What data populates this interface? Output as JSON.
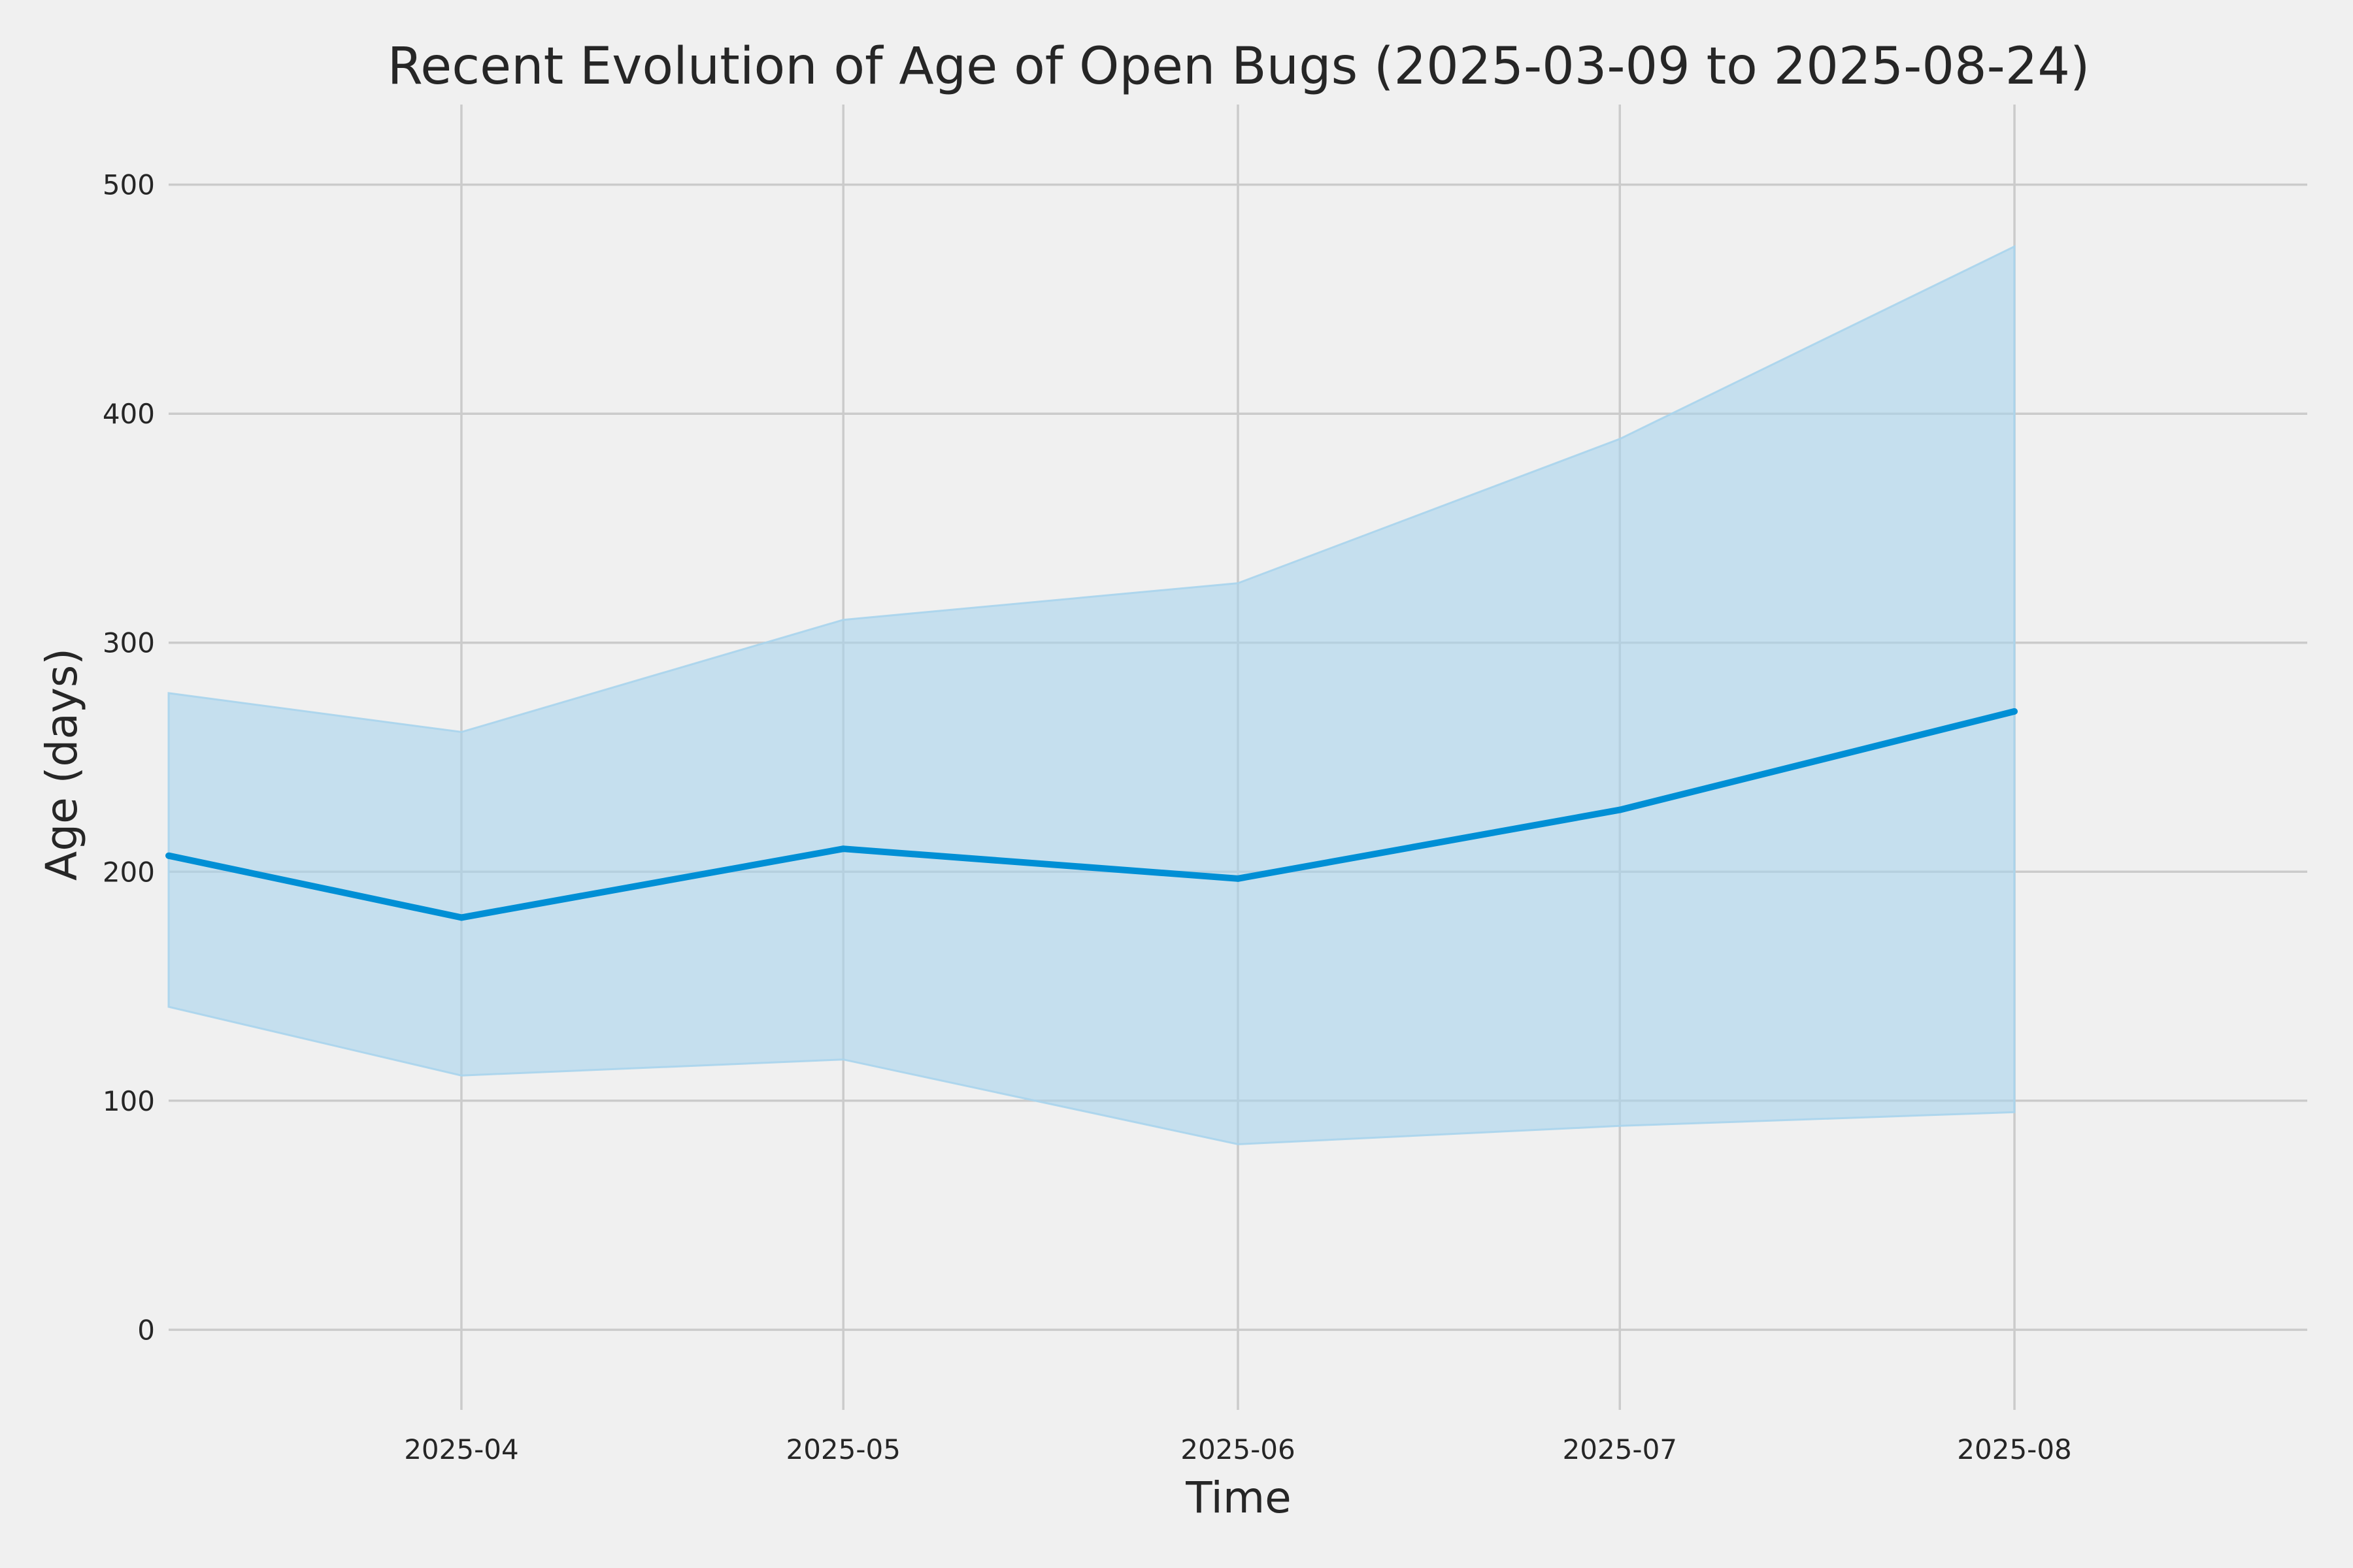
{
  "chart_data": {
    "type": "line",
    "title": "Recent Evolution of Age of Open Bugs (2025-03-09 to 2025-08-24)",
    "xlabel": "Time",
    "ylabel": "Age (days)",
    "x": [
      "2025-03-09",
      "2025-04-01",
      "2025-05-01",
      "2025-06-01",
      "2025-07-01",
      "2025-08-01"
    ],
    "xlim": [
      "2025-03-09",
      "2025-08-24"
    ],
    "ylim": [
      -35,
      535
    ],
    "x_ticks": [
      "2025-04-01",
      "2025-05-01",
      "2025-06-01",
      "2025-07-01",
      "2025-08-01"
    ],
    "x_tick_labels": [
      "2025-04",
      "2025-05",
      "2025-06",
      "2025-07",
      "2025-08"
    ],
    "y_ticks": [
      0,
      100,
      200,
      300,
      400,
      500
    ],
    "y_tick_labels": [
      "0",
      "100",
      "200",
      "300",
      "400",
      "500"
    ],
    "series": [
      {
        "values": [
          207,
          180,
          210,
          197,
          227,
          270
        ],
        "upper": [
          278,
          261,
          310,
          326,
          389,
          473
        ],
        "lower": [
          141,
          111,
          118,
          81,
          89,
          95
        ],
        "color": "#008fd5",
        "band_color": "#a8d4ec"
      }
    ],
    "grid": true,
    "legend": "none"
  }
}
